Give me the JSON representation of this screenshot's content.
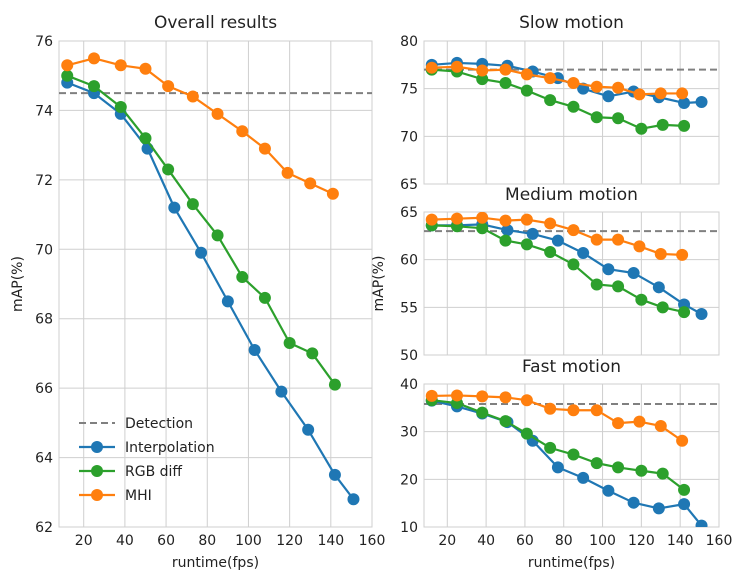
{
  "chart_data": [
    {
      "type": "line",
      "title": "Overall results",
      "xlabel": "runtime(fps)",
      "ylabel": "mAP(%)",
      "xlim": [
        8,
        160
      ],
      "ylim": [
        62,
        76
      ],
      "xticks": [
        20,
        40,
        60,
        80,
        100,
        120,
        140,
        160
      ],
      "yticks": [
        62,
        64,
        66,
        68,
        70,
        72,
        74,
        76
      ],
      "grid": true,
      "legend_position": "bottom-left",
      "reference_lines": [
        {
          "name": "Detection",
          "y": 74.5,
          "color": "#808080"
        }
      ],
      "series": [
        {
          "name": "Interpolation",
          "color": "#1f77b4",
          "x": [
            12,
            25,
            38,
            51,
            64,
            77,
            90,
            103,
            116,
            129,
            142,
            151
          ],
          "y": [
            74.8,
            74.5,
            73.9,
            72.9,
            71.2,
            69.9,
            68.5,
            67.1,
            65.9,
            64.8,
            63.5,
            62.8
          ]
        },
        {
          "name": "RGB diff",
          "color": "#2ca02c",
          "x": [
            12,
            25,
            38,
            50,
            61,
            73,
            85,
            97,
            108,
            120,
            131,
            142
          ],
          "y": [
            75.0,
            74.7,
            74.1,
            73.2,
            72.3,
            71.3,
            70.4,
            69.2,
            68.6,
            67.3,
            67.0,
            66.1
          ]
        },
        {
          "name": "MHI",
          "color": "#ff7f0e",
          "x": [
            12,
            25,
            38,
            50,
            61,
            73,
            85,
            97,
            108,
            119,
            130,
            141
          ],
          "y": [
            75.3,
            75.5,
            75.3,
            75.2,
            74.7,
            74.4,
            73.9,
            73.4,
            72.9,
            72.2,
            71.9,
            71.6
          ]
        }
      ]
    },
    {
      "type": "line",
      "title": "Slow motion",
      "xlabel": "",
      "ylabel": "",
      "xlim": [
        8,
        160
      ],
      "ylim": [
        65,
        80
      ],
      "xticks": [
        20,
        40,
        60,
        80,
        100,
        120,
        140,
        160
      ],
      "yticks": [
        65,
        70,
        75,
        80
      ],
      "grid": true,
      "reference_lines": [
        {
          "name": "Detection",
          "y": 77.0,
          "color": "#808080"
        }
      ],
      "series": [
        {
          "name": "Interpolation",
          "color": "#1f77b4",
          "x": [
            12,
            25,
            38,
            51,
            64,
            77,
            90,
            103,
            116,
            129,
            142,
            151
          ],
          "y": [
            77.5,
            77.7,
            77.6,
            77.4,
            76.8,
            76.1,
            75.0,
            74.2,
            74.7,
            74.1,
            73.5,
            73.6
          ]
        },
        {
          "name": "RGB diff",
          "color": "#2ca02c",
          "x": [
            12,
            25,
            38,
            50,
            61,
            73,
            85,
            97,
            108,
            120,
            131,
            142
          ],
          "y": [
            77.0,
            76.8,
            76.0,
            75.6,
            74.8,
            73.8,
            73.1,
            72.0,
            71.9,
            70.8,
            71.2,
            71.1
          ]
        },
        {
          "name": "MHI",
          "color": "#ff7f0e",
          "x": [
            12,
            25,
            38,
            50,
            61,
            73,
            85,
            97,
            108,
            119,
            130,
            141
          ],
          "y": [
            77.2,
            77.3,
            76.9,
            77.0,
            76.5,
            76.1,
            75.6,
            75.2,
            75.1,
            74.4,
            74.5,
            74.5
          ]
        }
      ]
    },
    {
      "type": "line",
      "title": "Medium motion",
      "xlabel": "",
      "ylabel": "mAP(%)",
      "xlim": [
        8,
        160
      ],
      "ylim": [
        50,
        65
      ],
      "xticks": [
        20,
        40,
        60,
        80,
        100,
        120,
        140,
        160
      ],
      "yticks": [
        50,
        55,
        60,
        65
      ],
      "grid": true,
      "reference_lines": [
        {
          "name": "Detection",
          "y": 63.0,
          "color": "#808080"
        }
      ],
      "series": [
        {
          "name": "Interpolation",
          "color": "#1f77b4",
          "x": [
            12,
            25,
            38,
            51,
            64,
            77,
            90,
            103,
            116,
            129,
            142,
            151
          ],
          "y": [
            63.6,
            63.6,
            63.7,
            63.1,
            62.7,
            62.0,
            60.7,
            59.0,
            58.6,
            57.1,
            55.3,
            54.3
          ]
        },
        {
          "name": "RGB diff",
          "color": "#2ca02c",
          "x": [
            12,
            25,
            38,
            50,
            61,
            73,
            85,
            97,
            108,
            120,
            131,
            142
          ],
          "y": [
            63.6,
            63.5,
            63.3,
            62.0,
            61.6,
            60.8,
            59.5,
            57.4,
            57.2,
            55.8,
            55.0,
            54.5
          ]
        },
        {
          "name": "MHI",
          "color": "#ff7f0e",
          "x": [
            12,
            25,
            38,
            50,
            61,
            73,
            85,
            97,
            108,
            119,
            130,
            141
          ],
          "y": [
            64.2,
            64.3,
            64.4,
            64.1,
            64.2,
            63.8,
            63.1,
            62.1,
            62.1,
            61.4,
            60.6,
            60.5
          ]
        }
      ]
    },
    {
      "type": "line",
      "title": "Fast motion",
      "xlabel": "runtime(fps)",
      "ylabel": "",
      "xlim": [
        8,
        160
      ],
      "ylim": [
        10,
        40
      ],
      "xticks": [
        20,
        40,
        60,
        80,
        100,
        120,
        140,
        160
      ],
      "yticks": [
        10,
        20,
        30,
        40
      ],
      "grid": true,
      "reference_lines": [
        {
          "name": "Detection",
          "y": 35.8,
          "color": "#808080"
        }
      ],
      "series": [
        {
          "name": "Interpolation",
          "color": "#1f77b4",
          "x": [
            12,
            25,
            38,
            51,
            64,
            77,
            90,
            103,
            116,
            129,
            142,
            151
          ],
          "y": [
            36.5,
            35.3,
            33.8,
            32.0,
            28.1,
            22.5,
            20.3,
            17.6,
            15.1,
            13.9,
            14.8,
            10.3
          ]
        },
        {
          "name": "RGB diff",
          "color": "#2ca02c",
          "x": [
            12,
            25,
            38,
            50,
            61,
            73,
            85,
            97,
            108,
            120,
            131,
            142
          ],
          "y": [
            36.6,
            36.0,
            34.0,
            32.2,
            29.6,
            26.6,
            25.2,
            23.4,
            22.5,
            21.8,
            21.2,
            17.8
          ]
        },
        {
          "name": "MHI",
          "color": "#ff7f0e",
          "x": [
            12,
            25,
            38,
            50,
            61,
            73,
            85,
            97,
            108,
            119,
            130,
            141
          ],
          "y": [
            37.5,
            37.6,
            37.4,
            37.2,
            36.6,
            34.8,
            34.5,
            34.5,
            31.8,
            32.1,
            31.2,
            28.1
          ]
        }
      ]
    }
  ]
}
